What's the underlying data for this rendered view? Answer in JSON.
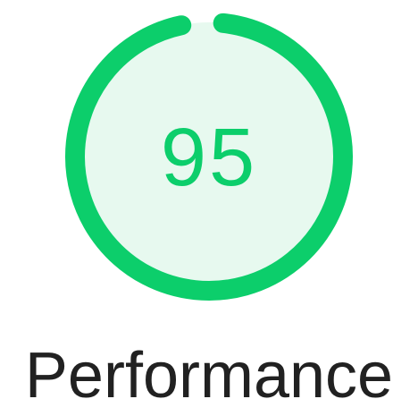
{
  "gauge": {
    "score": "95",
    "fraction": 0.95,
    "color_arc": "#0cce6b",
    "color_fill": "#e7f9ef",
    "color_text": "#0cce6b"
  },
  "category": {
    "label": "Performance"
  }
}
